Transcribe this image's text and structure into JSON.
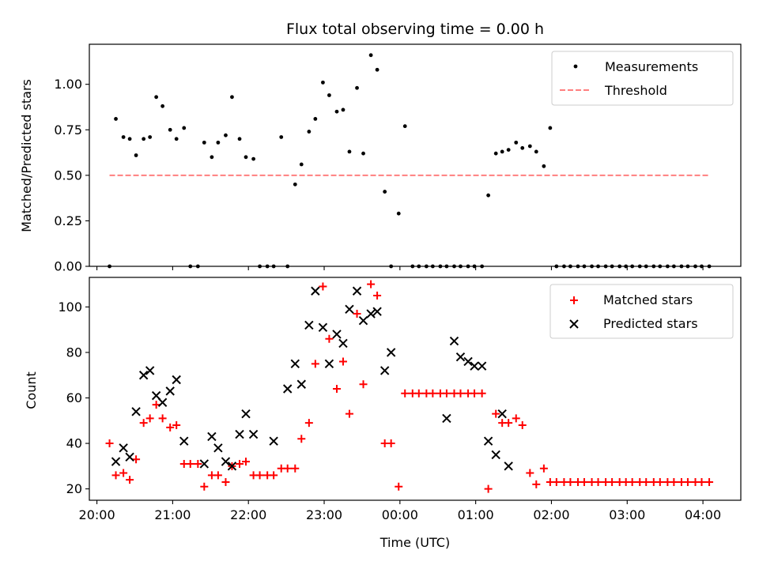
{
  "chart_data": [
    {
      "type": "scatter",
      "title": "Flux total observing time = 0.00 h",
      "xlabel": "",
      "ylabel": "Matched/Predicted stars",
      "xlim": [
        19.9,
        4.5
      ],
      "ylim": [
        0.0,
        1.22
      ],
      "xticks_hours": [
        20,
        21,
        22,
        23,
        0,
        1,
        2,
        3,
        4
      ],
      "yticks": [
        0.0,
        0.25,
        0.5,
        0.75,
        1.0
      ],
      "ytick_labels": [
        "0.00",
        "0.25",
        "0.50",
        "0.75",
        "1.00"
      ],
      "legend": {
        "placement": "top-right",
        "entries": [
          "Measurements",
          "Threshold"
        ]
      },
      "series": [
        {
          "name": "Measurements",
          "marker": "dot",
          "color": "#000000",
          "x": [
            "20:10",
            "20:15",
            "20:21",
            "20:26",
            "20:31",
            "20:37",
            "20:42",
            "20:47",
            "20:52",
            "20:58",
            "21:03",
            "21:09",
            "21:14",
            "21:20",
            "21:25",
            "21:31",
            "21:36",
            "21:42",
            "21:47",
            "21:53",
            "21:58",
            "22:04",
            "22:09",
            "22:15",
            "22:20",
            "22:26",
            "22:31",
            "22:37",
            "22:42",
            "22:48",
            "22:53",
            "22:59",
            "23:04",
            "23:10",
            "23:15",
            "23:20",
            "23:26",
            "23:31",
            "23:37",
            "23:42",
            "23:48",
            "23:53",
            "23:59",
            "00:04",
            "00:10",
            "00:15",
            "00:21",
            "00:26",
            "00:32",
            "00:37",
            "00:43",
            "00:48",
            "00:54",
            "00:59",
            "01:05",
            "01:10",
            "01:16",
            "01:21",
            "01:26",
            "01:32",
            "01:37",
            "01:43",
            "01:48",
            "01:54",
            "01:59",
            "02:04",
            "02:10",
            "02:15",
            "02:21",
            "02:26",
            "02:32",
            "02:37",
            "02:43",
            "02:48",
            "02:54",
            "02:59",
            "03:04",
            "03:10",
            "03:15",
            "03:21",
            "03:26",
            "03:32",
            "03:37",
            "03:43",
            "03:48",
            "03:54",
            "03:59",
            "04:05"
          ],
          "y": [
            0.0,
            0.81,
            0.71,
            0.7,
            0.61,
            0.7,
            0.71,
            0.93,
            0.88,
            0.75,
            0.7,
            0.76,
            0.0,
            0.0,
            0.68,
            0.6,
            0.68,
            0.72,
            0.93,
            0.7,
            0.6,
            0.59,
            0.0,
            0.0,
            0.0,
            0.71,
            0.0,
            0.45,
            0.56,
            0.74,
            0.81,
            1.01,
            0.94,
            0.85,
            0.86,
            0.63,
            0.98,
            0.62,
            1.16,
            1.08,
            0.41,
            0.0,
            0.29,
            0.77,
            0.0,
            0.0,
            0.0,
            0.0,
            0.0,
            0.0,
            0.0,
            0.0,
            0.0,
            0.0,
            0.0,
            0.39,
            0.62,
            0.63,
            0.64,
            0.68,
            0.65,
            0.66,
            0.63,
            0.55,
            0.76,
            0.0,
            0.0,
            0.0,
            0.0,
            0.0,
            0.0,
            0.0,
            0.0,
            0.0,
            0.0,
            0.0,
            0.0,
            0.0,
            0.0,
            0.0,
            0.0,
            0.0,
            0.0,
            0.0,
            0.0,
            0.0,
            0.0,
            0.0
          ]
        },
        {
          "name": "Threshold",
          "line": "dashed",
          "color": "#ff7f7f",
          "x": [
            "20:10",
            "04:05"
          ],
          "y": [
            0.5,
            0.5
          ]
        }
      ]
    },
    {
      "type": "scatter",
      "title": "",
      "xlabel": "Time (UTC)",
      "ylabel": "Count",
      "xlim": [
        19.9,
        4.5
      ],
      "ylim": [
        15,
        113
      ],
      "xticks_hours": [
        20,
        21,
        22,
        23,
        0,
        1,
        2,
        3,
        4
      ],
      "xtick_labels": [
        "20:00",
        "21:00",
        "22:00",
        "23:00",
        "00:00",
        "01:00",
        "02:00",
        "03:00",
        "04:00"
      ],
      "yticks": [
        20,
        40,
        60,
        80,
        100
      ],
      "ytick_labels": [
        "20",
        "40",
        "60",
        "80",
        "100"
      ],
      "legend": {
        "placement": "top-right",
        "entries": [
          "Matched stars",
          "Predicted stars"
        ]
      },
      "series": [
        {
          "name": "Matched stars",
          "marker": "plus",
          "color": "#ff0000",
          "x": [
            "20:10",
            "20:15",
            "20:21",
            "20:26",
            "20:31",
            "20:37",
            "20:42",
            "20:47",
            "20:52",
            "20:58",
            "21:03",
            "21:09",
            "21:14",
            "21:20",
            "21:25",
            "21:31",
            "21:36",
            "21:42",
            "21:47",
            "21:53",
            "21:58",
            "22:04",
            "22:09",
            "22:15",
            "22:20",
            "22:26",
            "22:31",
            "22:37",
            "22:42",
            "22:48",
            "22:53",
            "22:59",
            "23:04",
            "23:10",
            "23:15",
            "23:20",
            "23:26",
            "23:31",
            "23:37",
            "23:42",
            "23:48",
            "23:53",
            "23:59",
            "00:04",
            "00:10",
            "00:15",
            "00:21",
            "00:26",
            "00:32",
            "00:37",
            "00:43",
            "00:48",
            "00:54",
            "00:59",
            "01:05",
            "01:10",
            "01:16",
            "01:21",
            "01:26",
            "01:32",
            "01:37",
            "01:43",
            "01:48",
            "01:54",
            "01:59",
            "02:04",
            "02:10",
            "02:15",
            "02:21",
            "02:26",
            "02:32",
            "02:37",
            "02:43",
            "02:48",
            "02:54",
            "02:59",
            "03:04",
            "03:10",
            "03:15",
            "03:21",
            "03:26",
            "03:32",
            "03:37",
            "03:43",
            "03:48",
            "03:54",
            "03:59",
            "04:05"
          ],
          "y": [
            40,
            26,
            27,
            24,
            33,
            49,
            51,
            57,
            51,
            47,
            48,
            31,
            31,
            31,
            21,
            26,
            26,
            23,
            30,
            31,
            32,
            26,
            26,
            26,
            26,
            29,
            29,
            29,
            42,
            49,
            75,
            109,
            86,
            64,
            76,
            53,
            97,
            66,
            110,
            105,
            40,
            40,
            21,
            62,
            62,
            62,
            62,
            62,
            62,
            62,
            62,
            62,
            62,
            62,
            62,
            20,
            53,
            49,
            49,
            51,
            48,
            27,
            22,
            29,
            23,
            23,
            23,
            23,
            23,
            23,
            23,
            23,
            23,
            23,
            23,
            23,
            23,
            23,
            23,
            23,
            23,
            23,
            23,
            23,
            23,
            23,
            23,
            23
          ]
        },
        {
          "name": "Predicted stars",
          "marker": "x",
          "color": "#000000",
          "x": [
            "20:15",
            "20:21",
            "20:26",
            "20:31",
            "20:37",
            "20:42",
            "20:47",
            "20:52",
            "20:58",
            "21:03",
            "21:09",
            "21:25",
            "21:31",
            "21:36",
            "21:42",
            "21:47",
            "21:53",
            "21:58",
            "22:04",
            "22:20",
            "22:31",
            "22:37",
            "22:42",
            "22:48",
            "22:53",
            "22:59",
            "23:04",
            "23:10",
            "23:15",
            "23:20",
            "23:26",
            "23:31",
            "23:37",
            "23:42",
            "23:48",
            "23:53",
            "00:37",
            "00:43",
            "00:48",
            "00:54",
            "00:59",
            "01:05",
            "01:10",
            "01:16",
            "01:21",
            "01:26"
          ],
          "y": [
            32,
            38,
            34,
            54,
            70,
            72,
            61,
            58,
            63,
            68,
            41,
            31,
            43,
            38,
            32,
            30,
            44,
            53,
            44,
            41,
            64,
            75,
            66,
            92,
            107,
            91,
            75,
            88,
            84,
            99,
            107,
            94,
            97,
            98,
            72,
            80,
            51,
            85,
            78,
            76,
            74,
            74,
            41,
            35,
            53,
            30
          ]
        }
      ]
    }
  ]
}
